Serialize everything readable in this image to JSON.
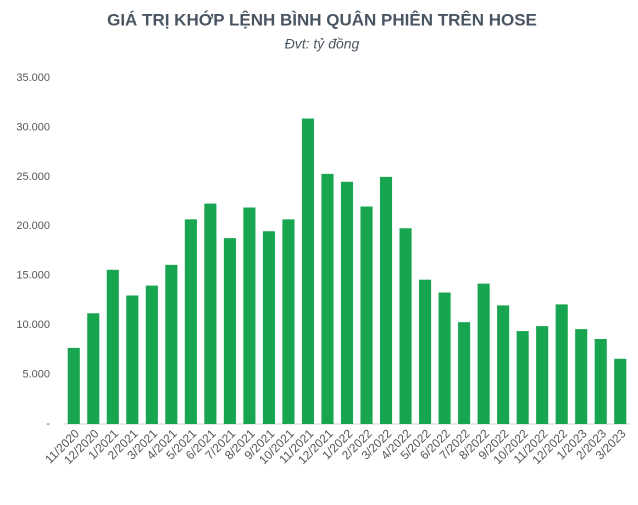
{
  "chart_data": {
    "type": "bar",
    "title": "GIÁ TRỊ KHỚP LỆNH BÌNH QUÂN PHIÊN TRÊN HOSE",
    "subtitle": "Đvt: tỷ đồng",
    "categories": [
      "11/2020",
      "12/2020",
      "1/2021",
      "2/2021",
      "3/2021",
      "4/2021",
      "5/2021",
      "6/2021",
      "7/2021",
      "8/2021",
      "9/2021",
      "10/2021",
      "11/2021",
      "12/2021",
      "1/2022",
      "2/2022",
      "3/2022",
      "4/2022",
      "5/2022",
      "6/2022",
      "7/2022",
      "8/2022",
      "9/2022",
      "10/2022",
      "11/2022",
      "12/2022",
      "1/2023",
      "2/2023",
      "3/2023"
    ],
    "values": [
      7700,
      11200,
      15600,
      13000,
      14000,
      16100,
      20700,
      22300,
      18800,
      21900,
      19500,
      20700,
      30900,
      25300,
      24500,
      22000,
      25000,
      19800,
      14600,
      13300,
      10300,
      14200,
      12000,
      9400,
      9900,
      12100,
      9600,
      8600,
      6600
    ],
    "color": "#18a550",
    "ylim": [
      0,
      35000
    ],
    "yticks": [
      {
        "value": 0,
        "label": "-"
      },
      {
        "value": 5000,
        "label": "5.000"
      },
      {
        "value": 10000,
        "label": "10.000"
      },
      {
        "value": 15000,
        "label": "15.000"
      },
      {
        "value": 20000,
        "label": "20.000"
      },
      {
        "value": 25000,
        "label": "25.000"
      },
      {
        "value": 30000,
        "label": "30.000"
      },
      {
        "value": 35000,
        "label": "35.000"
      }
    ],
    "grid": false
  }
}
